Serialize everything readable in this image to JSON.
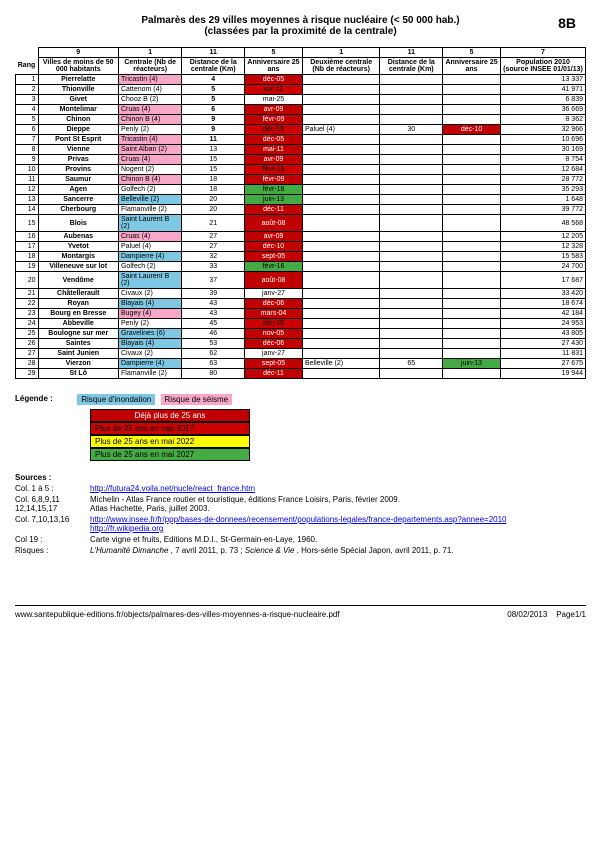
{
  "title_line1": "Palmarès des 29 villes moyennes à risque nucléaire (< 50 000 hab.)",
  "title_line2": "(classées par la proximité de la centrale)",
  "page_code": "8B",
  "colors": {
    "flood": "#7ec8e3",
    "seismic": "#f7a8c9",
    "over25": "#c00000",
    "over25_fg": "#ffffff",
    "by2017": "#cc0000",
    "by2022": "#ffff00",
    "by2027": "#44aa44"
  },
  "header_row1": [
    "",
    "9",
    "1",
    "11",
    "5",
    "1",
    "11",
    "5",
    "7"
  ],
  "header_row2": [
    "Rang",
    "Villes de moins de 50 000 habitants",
    "Centrale (Nb de réacteurs)",
    "Distance de la centrale (Km)",
    "Anniversaire 25 ans",
    "Deuxième centrale (Nb de réacteurs)",
    "Distance de la centrale (Km)",
    "Anniversaire 25 ans",
    "Population 2010 (source INSEE 01/01/13)"
  ],
  "rows": [
    {
      "r": 1,
      "v": "Pierrelatte",
      "c": "Tricastin (4)",
      "crisk": "seismic",
      "d": "4",
      "db": true,
      "a": "déc-05",
      "ac": "over25",
      "c2": "",
      "d2": "",
      "a2": "",
      "a2c": "",
      "p": "13 337"
    },
    {
      "r": 2,
      "v": "Thionville",
      "c": "Cattenom (4)",
      "crisk": "",
      "d": "5",
      "db": true,
      "a": "avr-12",
      "ac": "by2017",
      "c2": "",
      "d2": "",
      "a2": "",
      "a2c": "",
      "p": "41 971"
    },
    {
      "r": 3,
      "v": "Givet",
      "c": "Chooz B (2)",
      "crisk": "",
      "d": "5",
      "db": true,
      "a": "mai-25",
      "ac": "",
      "c2": "",
      "d2": "",
      "a2": "",
      "a2c": "",
      "p": "6 839"
    },
    {
      "r": 4,
      "v": "Montelimar",
      "c": "Cruas (4)",
      "crisk": "seismic",
      "d": "6",
      "db": true,
      "a": "avr-09",
      "ac": "over25",
      "c2": "",
      "d2": "",
      "a2": "",
      "a2c": "",
      "p": "36 669"
    },
    {
      "r": 5,
      "v": "Chinon",
      "c": "Chinon B (4)",
      "crisk": "seismic",
      "d": "9",
      "db": true,
      "a": "févr-09",
      "ac": "over25",
      "c2": "",
      "d2": "",
      "a2": "",
      "a2c": "",
      "p": "8 362"
    },
    {
      "r": 6,
      "v": "Dieppe",
      "c": "Penly (2)",
      "crisk": "",
      "d": "9",
      "db": true,
      "a": "déc-15",
      "ac": "by2017",
      "c2": "Paluel (4)",
      "d2": "30",
      "a2": "déc-10",
      "a2c": "over25",
      "p": "32 966"
    },
    {
      "r": 7,
      "v": "Pont St Esprit",
      "c": "Tricastin (4)",
      "crisk": "seismic",
      "d": "11",
      "db": true,
      "a": "déc-05",
      "ac": "over25",
      "c2": "",
      "d2": "",
      "a2": "",
      "a2c": "",
      "p": "10 696"
    },
    {
      "r": 8,
      "v": "Vienne",
      "c": "Saint Alban (2)",
      "crisk": "seismic",
      "d": "13",
      "db": false,
      "a": "mai-11",
      "ac": "over25",
      "c2": "",
      "d2": "",
      "a2": "",
      "a2c": "",
      "p": "30 169"
    },
    {
      "r": 9,
      "v": "Privas",
      "c": "Cruas (4)",
      "crisk": "seismic",
      "d": "15",
      "db": false,
      "a": "avr-09",
      "ac": "over25",
      "c2": "",
      "d2": "",
      "a2": "",
      "a2c": "",
      "p": "8 754"
    },
    {
      "r": 10,
      "v": "Provins",
      "c": "Nogent (2)",
      "crisk": "",
      "d": "15",
      "db": false,
      "a": "févr-13",
      "ac": "by2017",
      "c2": "",
      "d2": "",
      "a2": "",
      "a2c": "",
      "p": "12 684"
    },
    {
      "r": 11,
      "v": "Saumur",
      "c": "Chinon B (4)",
      "crisk": "seismic",
      "d": "18",
      "db": false,
      "a": "févr-09",
      "ac": "over25",
      "c2": "",
      "d2": "",
      "a2": "",
      "a2c": "",
      "p": "28 772"
    },
    {
      "r": 12,
      "v": "Agen",
      "c": "Golfech (2)",
      "crisk": "",
      "d": "18",
      "db": false,
      "a": "févr-16",
      "ac": "by2027",
      "c2": "",
      "d2": "",
      "a2": "",
      "a2c": "",
      "p": "35 293"
    },
    {
      "r": 13,
      "v": "Sancerre",
      "c": "Belleville (2)",
      "crisk": "flood",
      "d": "20",
      "db": false,
      "a": "juin-13",
      "ac": "by2027",
      "c2": "",
      "d2": "",
      "a2": "",
      "a2c": "",
      "p": "1 648"
    },
    {
      "r": 14,
      "v": "Cherbourg",
      "c": "Flamanville (2)",
      "crisk": "",
      "d": "20",
      "db": false,
      "a": "déc-11",
      "ac": "over25",
      "c2": "",
      "d2": "",
      "a2": "",
      "a2c": "",
      "p": "39 772"
    },
    {
      "r": 15,
      "v": "Blois",
      "c": "Saint Laurent B (2)",
      "crisk": "flood",
      "d": "21",
      "db": false,
      "a": "août-08",
      "ac": "over25",
      "c2": "",
      "d2": "",
      "a2": "",
      "a2c": "",
      "p": "48 568"
    },
    {
      "r": 16,
      "v": "Aubenas",
      "c": "Cruas (4)",
      "crisk": "seismic",
      "d": "27",
      "db": false,
      "a": "avr-09",
      "ac": "over25",
      "c2": "",
      "d2": "",
      "a2": "",
      "a2c": "",
      "p": "12 205"
    },
    {
      "r": 17,
      "v": "Yvetot",
      "c": "Paluel (4)",
      "crisk": "",
      "d": "27",
      "db": false,
      "a": "déc-10",
      "ac": "over25",
      "c2": "",
      "d2": "",
      "a2": "",
      "a2c": "",
      "p": "12 328"
    },
    {
      "r": 18,
      "v": "Montargis",
      "c": "Dampierre (4)",
      "crisk": "flood",
      "d": "32",
      "db": false,
      "a": "sept-05",
      "ac": "over25",
      "c2": "",
      "d2": "",
      "a2": "",
      "a2c": "",
      "p": "15 583"
    },
    {
      "r": 19,
      "v": "Villeneuve sur lot",
      "c": "Golfech (2)",
      "crisk": "",
      "d": "33",
      "db": false,
      "a": "févr-16",
      "ac": "by2027",
      "c2": "",
      "d2": "",
      "a2": "",
      "a2c": "",
      "p": "24 700"
    },
    {
      "r": 20,
      "v": "Vendôme",
      "c": "Saint Laurent B (2)",
      "crisk": "flood",
      "d": "37",
      "db": false,
      "a": "août-08",
      "ac": "over25",
      "c2": "",
      "d2": "",
      "a2": "",
      "a2c": "",
      "p": "17 687"
    },
    {
      "r": 21,
      "v": "Châtellerault",
      "c": "Civaux (2)",
      "crisk": "",
      "d": "39",
      "db": false,
      "a": "janv-27",
      "ac": "",
      "c2": "",
      "d2": "",
      "a2": "",
      "a2c": "",
      "p": "33 420"
    },
    {
      "r": 22,
      "v": "Royan",
      "c": "Blayais (4)",
      "crisk": "flood",
      "d": "43",
      "db": false,
      "a": "déc-06",
      "ac": "over25",
      "c2": "",
      "d2": "",
      "a2": "",
      "a2c": "",
      "p": "18 674"
    },
    {
      "r": 23,
      "v": "Bourg en Bresse",
      "c": "Bugey (4)",
      "crisk": "seismic",
      "d": "43",
      "db": false,
      "a": "mars-04",
      "ac": "over25",
      "c2": "",
      "d2": "",
      "a2": "",
      "a2c": "",
      "p": "42 184"
    },
    {
      "r": 24,
      "v": "Abbeville",
      "c": "Penly (2)",
      "crisk": "",
      "d": "45",
      "db": false,
      "a": "déc-15",
      "ac": "by2017",
      "c2": "",
      "d2": "",
      "a2": "",
      "a2c": "",
      "p": "24 953"
    },
    {
      "r": 25,
      "v": "Boulogne sur mer",
      "c": "Gravelines (6)",
      "crisk": "flood",
      "d": "46",
      "db": false,
      "a": "nov-05",
      "ac": "over25",
      "c2": "",
      "d2": "",
      "a2": "",
      "a2c": "",
      "p": "43 805"
    },
    {
      "r": 26,
      "v": "Saintes",
      "c": "Blayais (4)",
      "crisk": "flood",
      "d": "53",
      "db": false,
      "a": "déc-06",
      "ac": "over25",
      "c2": "",
      "d2": "",
      "a2": "",
      "a2c": "",
      "p": "27 430"
    },
    {
      "r": 27,
      "v": "Saint Junien",
      "c": "Civaux (2)",
      "crisk": "",
      "d": "62",
      "db": false,
      "a": "janv-27",
      "ac": "",
      "c2": "",
      "d2": "",
      "a2": "",
      "a2c": "",
      "p": "11 831"
    },
    {
      "r": 28,
      "v": "Vierzon",
      "c": "Dampierre (4)",
      "crisk": "flood",
      "d": "63",
      "db": false,
      "a": "sept-05",
      "ac": "over25",
      "c2": "Belleville (2)",
      "d2": "65",
      "a2": "juin-13",
      "a2c": "by2027",
      "p": "27 675"
    },
    {
      "r": 29,
      "v": "St  Lô",
      "c": "Flamanville (2)",
      "crisk": "",
      "d": "80",
      "db": false,
      "a": "déc-11",
      "ac": "over25",
      "c2": "",
      "d2": "",
      "a2": "",
      "a2c": "",
      "p": "19 944"
    }
  ],
  "legend": {
    "title": "Légende :",
    "flood": "Risque d'inondation",
    "seismic": "Risque de séisme",
    "over25": "Déjà plus de 25 ans",
    "by2017": "Plus de 25 ans en mai 2017",
    "by2022": "Plus de 25 ans en mai 2022",
    "by2027": "Plus de 25 ans en mai 2027"
  },
  "sources": {
    "title": "Sources :",
    "items": [
      {
        "label": "Col. 1 à 5 :",
        "html": "<a href='#'>http://futura24.voila.net/nucle/react_france.htm</a>"
      },
      {
        "label": "Col. 6,8,9,11 12,14,15,17",
        "html": "Michelin - Atlas France routier et touristique, éditions France Loisirs, Paris, février 2009.<br>Atlas Hachette, Paris, juillet 2003."
      },
      {
        "label": "Col. 7,10,13,16",
        "html": "<a href='#'>http://www.insee.fr/fr/ppp/bases-de-donnees/recensement/populations-legales/france-departements.asp?annee=2010</a><br><a href='#'>http://fr.wikipedia.org</a>"
      },
      {
        "label": "Col 19 :",
        "html": "Carte vigne et fruits, Editions M.D.I., St-Germain-en-Laye, 1960."
      },
      {
        "label": "Risques :",
        "html": "<i>L'Humanité Dimanche</i> , 7 avril 2011, p. 73 ; <i>Science &amp; Vie</i> , Hors-série Spécial Japon, avril 2011, p. 71."
      }
    ]
  },
  "footer": {
    "url": "www.santepublique-editions.fr/objects/palmares-des-villes-moyennes-a-risque-nucleaire.pdf",
    "date": "08/02/2013",
    "page": "Page1/1"
  }
}
